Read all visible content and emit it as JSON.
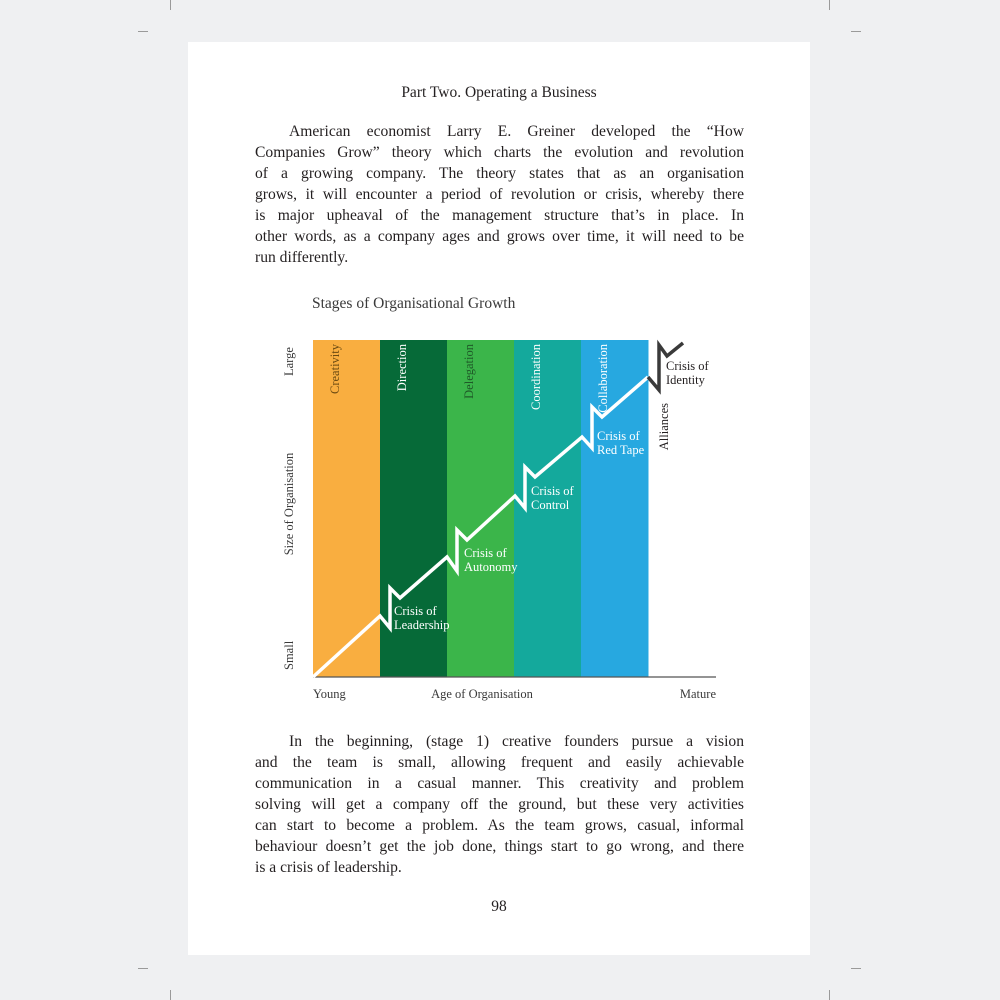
{
  "header": "Part Two. Operating a Business",
  "paragraph1": [
    "American economist Larry E. Greiner developed the “How",
    "Companies Grow” theory which charts the evolution and revolution",
    "of a growing company.  The theory states that as an organisation",
    "grows, it will encounter a period of revolution or crisis, whereby there",
    "is major upheaval of the management structure that’s in place. In",
    "other words, as a company ages and grows over time, it will need to be",
    "run differently."
  ],
  "diagram": {
    "title": "Stages of Organisational Growth",
    "y_axis": {
      "label": "Size of Organisation",
      "low": "Small",
      "high": "Large"
    },
    "x_axis": {
      "label": "Age of Organisation",
      "low": "Young",
      "high": "Mature"
    },
    "stages": [
      {
        "name": "Creativity",
        "color": "#f9ae40",
        "text_color": "#6b4a12"
      },
      {
        "name": "Direction",
        "color": "#066a38",
        "text_color": "#ffffff"
      },
      {
        "name": "Delegation",
        "color": "#3bb54a",
        "text_color": "#1f5a28"
      },
      {
        "name": "Coordination",
        "color": "#14a99c",
        "text_color": "#ffffff"
      },
      {
        "name": "Collaboration",
        "color": "#27a8e0",
        "text_color": "#ffffff"
      },
      {
        "name": "Alliances",
        "color": "#ffffff",
        "text_color": "#231f20"
      }
    ],
    "crises": [
      [
        "Crisis of",
        "Leadership"
      ],
      [
        "Crisis of",
        "Autonomy"
      ],
      [
        "Crisis of",
        "Control"
      ],
      [
        "Crisis of",
        "Red Tape"
      ],
      [
        "Crisis of",
        "Identity"
      ]
    ],
    "line_color": "#ffffff",
    "final_line_color": "#3a3a3a"
  },
  "paragraph2": [
    "In the beginning, (stage 1) creative founders pursue a vision",
    "and the team is small, allowing frequent and easily achievable",
    "communication in a casual manner. This creativity and problem",
    "solving will get a company off the ground, but these very activities",
    "can start to become a problem. As the team grows, casual, informal",
    "behaviour doesn’t get the job done, things start to go wrong, and there",
    "is a crisis of leadership."
  ],
  "page_number": "98"
}
